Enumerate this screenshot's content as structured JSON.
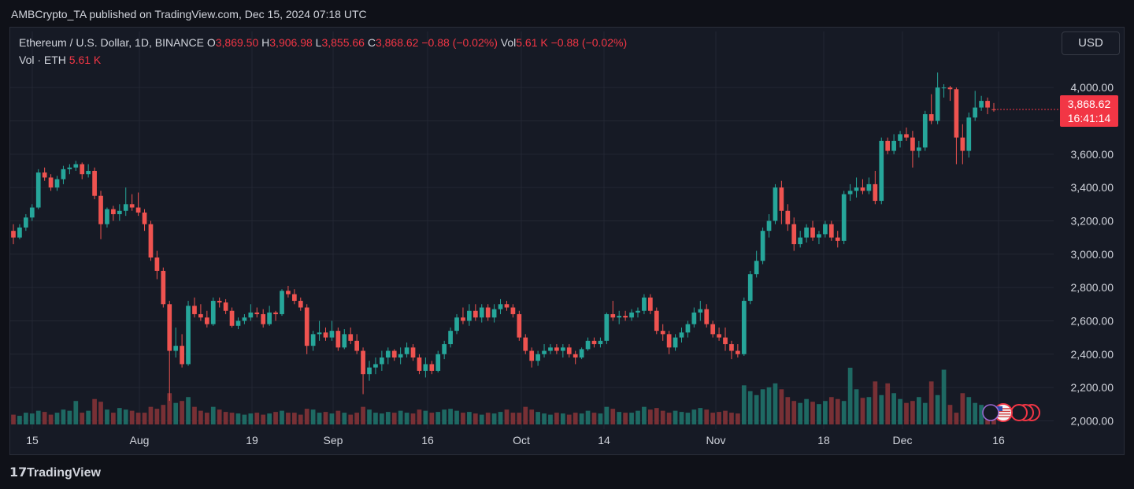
{
  "header": {
    "published": "AMBCrypto_TA published on TradingView.com, Dec 15, 2024 07:18 UTC"
  },
  "legend": {
    "symbol": "Ethereum / U.S. Dollar, 1D, BINANCE",
    "o_label": "O",
    "o_value": "3,869.50",
    "h_label": "H",
    "h_value": "3,906.98",
    "l_label": "L",
    "l_value": "3,855.66",
    "c_label": "C",
    "c_value": "3,868.62",
    "change": "−0.88 (−0.02%)",
    "vol_label": "Vol",
    "vol_value": "5.61 K",
    "vol_change": "−0.88 (−0.02%)",
    "vol_eth_label": "Vol · ETH",
    "vol_eth_value": "5.61 K"
  },
  "currency_button": "USD",
  "price_badge": {
    "price": "3,868.62",
    "countdown": "16:41:14"
  },
  "footer": {
    "brand": "TradingView"
  },
  "colors": {
    "up": "#26a69a",
    "down": "#ef5350",
    "grid": "#232733",
    "badge": "#f23645"
  },
  "chart_data": {
    "type": "candlestick",
    "interval": "1D",
    "x_ticks": [
      "15",
      "Aug",
      "19",
      "Sep",
      "16",
      "Oct",
      "14",
      "Nov",
      "18",
      "Dec",
      "16"
    ],
    "y_ticks": [
      "2,000.00",
      "2,200.00",
      "2,400.00",
      "2,600.00",
      "2,800.00",
      "3,000.00",
      "3,200.00",
      "3,400.00",
      "3,600.00",
      "4,000.00"
    ],
    "ylim": [
      1950,
      4100
    ],
    "candles": [
      {
        "o": 3140,
        "h": 3180,
        "l": 3060,
        "c": 3100
      },
      {
        "o": 3100,
        "h": 3180,
        "l": 3090,
        "c": 3160
      },
      {
        "o": 3160,
        "h": 3240,
        "l": 3140,
        "c": 3220
      },
      {
        "o": 3220,
        "h": 3300,
        "l": 3200,
        "c": 3280
      },
      {
        "o": 3280,
        "h": 3510,
        "l": 3270,
        "c": 3490
      },
      {
        "o": 3490,
        "h": 3520,
        "l": 3440,
        "c": 3460
      },
      {
        "o": 3460,
        "h": 3480,
        "l": 3380,
        "c": 3400
      },
      {
        "o": 3400,
        "h": 3470,
        "l": 3380,
        "c": 3450
      },
      {
        "o": 3450,
        "h": 3530,
        "l": 3420,
        "c": 3510
      },
      {
        "o": 3510,
        "h": 3540,
        "l": 3480,
        "c": 3520
      },
      {
        "o": 3520,
        "h": 3560,
        "l": 3500,
        "c": 3540
      },
      {
        "o": 3540,
        "h": 3550,
        "l": 3450,
        "c": 3480
      },
      {
        "o": 3480,
        "h": 3540,
        "l": 3460,
        "c": 3500
      },
      {
        "o": 3500,
        "h": 3520,
        "l": 3330,
        "c": 3350
      },
      {
        "o": 3350,
        "h": 3380,
        "l": 3090,
        "c": 3180
      },
      {
        "o": 3180,
        "h": 3280,
        "l": 3160,
        "c": 3270
      },
      {
        "o": 3270,
        "h": 3290,
        "l": 3200,
        "c": 3240
      },
      {
        "o": 3240,
        "h": 3300,
        "l": 3200,
        "c": 3260
      },
      {
        "o": 3260,
        "h": 3400,
        "l": 3230,
        "c": 3300
      },
      {
        "o": 3300,
        "h": 3360,
        "l": 3260,
        "c": 3280
      },
      {
        "o": 3280,
        "h": 3370,
        "l": 3230,
        "c": 3250
      },
      {
        "o": 3250,
        "h": 3270,
        "l": 3140,
        "c": 3180
      },
      {
        "o": 3180,
        "h": 3200,
        "l": 2960,
        "c": 2980
      },
      {
        "o": 2980,
        "h": 3020,
        "l": 2850,
        "c": 2900
      },
      {
        "o": 2900,
        "h": 2920,
        "l": 2680,
        "c": 2700
      },
      {
        "o": 2700,
        "h": 2720,
        "l": 2120,
        "c": 2420
      },
      {
        "o": 2420,
        "h": 2560,
        "l": 2380,
        "c": 2450
      },
      {
        "o": 2450,
        "h": 2520,
        "l": 2320,
        "c": 2340
      },
      {
        "o": 2340,
        "h": 2720,
        "l": 2330,
        "c": 2690
      },
      {
        "o": 2690,
        "h": 2740,
        "l": 2620,
        "c": 2640
      },
      {
        "o": 2640,
        "h": 2700,
        "l": 2600,
        "c": 2620
      },
      {
        "o": 2620,
        "h": 2660,
        "l": 2560,
        "c": 2580
      },
      {
        "o": 2580,
        "h": 2740,
        "l": 2570,
        "c": 2720
      },
      {
        "o": 2720,
        "h": 2740,
        "l": 2680,
        "c": 2710
      },
      {
        "o": 2710,
        "h": 2730,
        "l": 2640,
        "c": 2660
      },
      {
        "o": 2660,
        "h": 2680,
        "l": 2560,
        "c": 2570
      },
      {
        "o": 2570,
        "h": 2620,
        "l": 2550,
        "c": 2600
      },
      {
        "o": 2600,
        "h": 2640,
        "l": 2580,
        "c": 2620
      },
      {
        "o": 2620,
        "h": 2700,
        "l": 2600,
        "c": 2650
      },
      {
        "o": 2650,
        "h": 2680,
        "l": 2620,
        "c": 2640
      },
      {
        "o": 2640,
        "h": 2670,
        "l": 2560,
        "c": 2580
      },
      {
        "o": 2580,
        "h": 2690,
        "l": 2570,
        "c": 2650
      },
      {
        "o": 2650,
        "h": 2660,
        "l": 2600,
        "c": 2640
      },
      {
        "o": 2640,
        "h": 2790,
        "l": 2630,
        "c": 2780
      },
      {
        "o": 2780,
        "h": 2810,
        "l": 2740,
        "c": 2760
      },
      {
        "o": 2760,
        "h": 2790,
        "l": 2700,
        "c": 2720
      },
      {
        "o": 2720,
        "h": 2740,
        "l": 2660,
        "c": 2680
      },
      {
        "o": 2680,
        "h": 2700,
        "l": 2400,
        "c": 2450
      },
      {
        "o": 2450,
        "h": 2540,
        "l": 2420,
        "c": 2520
      },
      {
        "o": 2520,
        "h": 2600,
        "l": 2480,
        "c": 2530
      },
      {
        "o": 2530,
        "h": 2560,
        "l": 2480,
        "c": 2500
      },
      {
        "o": 2500,
        "h": 2600,
        "l": 2480,
        "c": 2540
      },
      {
        "o": 2540,
        "h": 2560,
        "l": 2420,
        "c": 2440
      },
      {
        "o": 2440,
        "h": 2550,
        "l": 2430,
        "c": 2520
      },
      {
        "o": 2520,
        "h": 2560,
        "l": 2460,
        "c": 2480
      },
      {
        "o": 2480,
        "h": 2520,
        "l": 2400,
        "c": 2420
      },
      {
        "o": 2420,
        "h": 2440,
        "l": 2160,
        "c": 2280
      },
      {
        "o": 2280,
        "h": 2360,
        "l": 2240,
        "c": 2320
      },
      {
        "o": 2320,
        "h": 2380,
        "l": 2280,
        "c": 2340
      },
      {
        "o": 2340,
        "h": 2420,
        "l": 2300,
        "c": 2380
      },
      {
        "o": 2380,
        "h": 2440,
        "l": 2340,
        "c": 2420
      },
      {
        "o": 2420,
        "h": 2430,
        "l": 2360,
        "c": 2380
      },
      {
        "o": 2380,
        "h": 2440,
        "l": 2340,
        "c": 2400
      },
      {
        "o": 2400,
        "h": 2470,
        "l": 2380,
        "c": 2440
      },
      {
        "o": 2440,
        "h": 2460,
        "l": 2360,
        "c": 2380
      },
      {
        "o": 2380,
        "h": 2400,
        "l": 2280,
        "c": 2300
      },
      {
        "o": 2300,
        "h": 2380,
        "l": 2260,
        "c": 2340
      },
      {
        "o": 2340,
        "h": 2360,
        "l": 2280,
        "c": 2300
      },
      {
        "o": 2300,
        "h": 2420,
        "l": 2290,
        "c": 2400
      },
      {
        "o": 2400,
        "h": 2480,
        "l": 2370,
        "c": 2460
      },
      {
        "o": 2460,
        "h": 2560,
        "l": 2440,
        "c": 2540
      },
      {
        "o": 2540,
        "h": 2640,
        "l": 2520,
        "c": 2620
      },
      {
        "o": 2620,
        "h": 2680,
        "l": 2580,
        "c": 2600
      },
      {
        "o": 2600,
        "h": 2700,
        "l": 2570,
        "c": 2660
      },
      {
        "o": 2660,
        "h": 2700,
        "l": 2600,
        "c": 2620
      },
      {
        "o": 2620,
        "h": 2700,
        "l": 2590,
        "c": 2680
      },
      {
        "o": 2680,
        "h": 2700,
        "l": 2600,
        "c": 2620
      },
      {
        "o": 2620,
        "h": 2700,
        "l": 2590,
        "c": 2670
      },
      {
        "o": 2670,
        "h": 2730,
        "l": 2640,
        "c": 2700
      },
      {
        "o": 2700,
        "h": 2720,
        "l": 2660,
        "c": 2680
      },
      {
        "o": 2680,
        "h": 2700,
        "l": 2620,
        "c": 2640
      },
      {
        "o": 2640,
        "h": 2660,
        "l": 2480,
        "c": 2500
      },
      {
        "o": 2500,
        "h": 2520,
        "l": 2400,
        "c": 2420
      },
      {
        "o": 2420,
        "h": 2440,
        "l": 2320,
        "c": 2360
      },
      {
        "o": 2360,
        "h": 2420,
        "l": 2330,
        "c": 2400
      },
      {
        "o": 2400,
        "h": 2460,
        "l": 2380,
        "c": 2420
      },
      {
        "o": 2420,
        "h": 2460,
        "l": 2400,
        "c": 2440
      },
      {
        "o": 2440,
        "h": 2460,
        "l": 2400,
        "c": 2420
      },
      {
        "o": 2420,
        "h": 2460,
        "l": 2380,
        "c": 2440
      },
      {
        "o": 2440,
        "h": 2460,
        "l": 2380,
        "c": 2400
      },
      {
        "o": 2400,
        "h": 2420,
        "l": 2340,
        "c": 2380
      },
      {
        "o": 2380,
        "h": 2440,
        "l": 2370,
        "c": 2430
      },
      {
        "o": 2430,
        "h": 2500,
        "l": 2420,
        "c": 2480
      },
      {
        "o": 2480,
        "h": 2500,
        "l": 2440,
        "c": 2460
      },
      {
        "o": 2460,
        "h": 2500,
        "l": 2440,
        "c": 2480
      },
      {
        "o": 2480,
        "h": 2650,
        "l": 2460,
        "c": 2640
      },
      {
        "o": 2640,
        "h": 2720,
        "l": 2600,
        "c": 2620
      },
      {
        "o": 2620,
        "h": 2660,
        "l": 2580,
        "c": 2630
      },
      {
        "o": 2630,
        "h": 2660,
        "l": 2600,
        "c": 2620
      },
      {
        "o": 2620,
        "h": 2670,
        "l": 2600,
        "c": 2650
      },
      {
        "o": 2650,
        "h": 2680,
        "l": 2620,
        "c": 2660
      },
      {
        "o": 2660,
        "h": 2760,
        "l": 2640,
        "c": 2740
      },
      {
        "o": 2740,
        "h": 2760,
        "l": 2640,
        "c": 2660
      },
      {
        "o": 2660,
        "h": 2680,
        "l": 2520,
        "c": 2540
      },
      {
        "o": 2540,
        "h": 2580,
        "l": 2480,
        "c": 2520
      },
      {
        "o": 2520,
        "h": 2540,
        "l": 2400,
        "c": 2440
      },
      {
        "o": 2440,
        "h": 2520,
        "l": 2420,
        "c": 2500
      },
      {
        "o": 2500,
        "h": 2560,
        "l": 2470,
        "c": 2530
      },
      {
        "o": 2530,
        "h": 2600,
        "l": 2500,
        "c": 2580
      },
      {
        "o": 2580,
        "h": 2680,
        "l": 2560,
        "c": 2650
      },
      {
        "o": 2650,
        "h": 2720,
        "l": 2600,
        "c": 2670
      },
      {
        "o": 2670,
        "h": 2700,
        "l": 2560,
        "c": 2580
      },
      {
        "o": 2580,
        "h": 2600,
        "l": 2500,
        "c": 2520
      },
      {
        "o": 2520,
        "h": 2560,
        "l": 2480,
        "c": 2500
      },
      {
        "o": 2500,
        "h": 2560,
        "l": 2420,
        "c": 2460
      },
      {
        "o": 2460,
        "h": 2480,
        "l": 2370,
        "c": 2420
      },
      {
        "o": 2420,
        "h": 2460,
        "l": 2380,
        "c": 2400
      },
      {
        "o": 2400,
        "h": 2740,
        "l": 2390,
        "c": 2720
      },
      {
        "o": 2720,
        "h": 2900,
        "l": 2700,
        "c": 2880
      },
      {
        "o": 2880,
        "h": 3020,
        "l": 2860,
        "c": 2960
      },
      {
        "o": 2960,
        "h": 3160,
        "l": 2940,
        "c": 3140
      },
      {
        "o": 3140,
        "h": 3240,
        "l": 3100,
        "c": 3200
      },
      {
        "o": 3200,
        "h": 3420,
        "l": 3180,
        "c": 3400
      },
      {
        "o": 3400,
        "h": 3440,
        "l": 3180,
        "c": 3260
      },
      {
        "o": 3260,
        "h": 3300,
        "l": 3140,
        "c": 3180
      },
      {
        "o": 3180,
        "h": 3220,
        "l": 3020,
        "c": 3060
      },
      {
        "o": 3060,
        "h": 3140,
        "l": 3040,
        "c": 3100
      },
      {
        "o": 3100,
        "h": 3180,
        "l": 3070,
        "c": 3160
      },
      {
        "o": 3160,
        "h": 3200,
        "l": 3080,
        "c": 3100
      },
      {
        "o": 3100,
        "h": 3140,
        "l": 3060,
        "c": 3120
      },
      {
        "o": 3120,
        "h": 3200,
        "l": 3100,
        "c": 3180
      },
      {
        "o": 3180,
        "h": 3200,
        "l": 3080,
        "c": 3100
      },
      {
        "o": 3100,
        "h": 3140,
        "l": 3040,
        "c": 3080
      },
      {
        "o": 3080,
        "h": 3380,
        "l": 3060,
        "c": 3360
      },
      {
        "o": 3360,
        "h": 3420,
        "l": 3320,
        "c": 3380
      },
      {
        "o": 3380,
        "h": 3460,
        "l": 3340,
        "c": 3400
      },
      {
        "o": 3400,
        "h": 3450,
        "l": 3360,
        "c": 3380
      },
      {
        "o": 3380,
        "h": 3460,
        "l": 3360,
        "c": 3420
      },
      {
        "o": 3420,
        "h": 3500,
        "l": 3300,
        "c": 3320
      },
      {
        "o": 3320,
        "h": 3700,
        "l": 3300,
        "c": 3680
      },
      {
        "o": 3680,
        "h": 3700,
        "l": 3600,
        "c": 3620
      },
      {
        "o": 3620,
        "h": 3720,
        "l": 3600,
        "c": 3680
      },
      {
        "o": 3680,
        "h": 3740,
        "l": 3640,
        "c": 3720
      },
      {
        "o": 3720,
        "h": 3760,
        "l": 3680,
        "c": 3700
      },
      {
        "o": 3700,
        "h": 3740,
        "l": 3520,
        "c": 3620
      },
      {
        "o": 3620,
        "h": 3680,
        "l": 3580,
        "c": 3640
      },
      {
        "o": 3640,
        "h": 3860,
        "l": 3620,
        "c": 3840
      },
      {
        "o": 3840,
        "h": 3960,
        "l": 3780,
        "c": 3800
      },
      {
        "o": 3800,
        "h": 4090,
        "l": 3780,
        "c": 4000
      },
      {
        "o": 4000,
        "h": 4020,
        "l": 3940,
        "c": 4000
      },
      {
        "o": 4000,
        "h": 4010,
        "l": 3920,
        "c": 3990
      },
      {
        "o": 3990,
        "h": 4000,
        "l": 3540,
        "c": 3700
      },
      {
        "o": 3700,
        "h": 3780,
        "l": 3540,
        "c": 3620
      },
      {
        "o": 3620,
        "h": 3850,
        "l": 3580,
        "c": 3820
      },
      {
        "o": 3820,
        "h": 3980,
        "l": 3800,
        "c": 3880
      },
      {
        "o": 3880,
        "h": 3950,
        "l": 3860,
        "c": 3920
      },
      {
        "o": 3920,
        "h": 3940,
        "l": 3840,
        "c": 3880
      },
      {
        "o": 3869.5,
        "h": 3906.98,
        "l": 3855.66,
        "c": 3868.62
      }
    ],
    "volume": [
      0.25,
      0.22,
      0.3,
      0.28,
      0.35,
      0.32,
      0.25,
      0.3,
      0.38,
      0.35,
      0.6,
      0.3,
      0.35,
      0.65,
      0.58,
      0.38,
      0.3,
      0.42,
      0.38,
      0.35,
      0.3,
      0.3,
      0.45,
      0.4,
      0.5,
      0.8,
      0.55,
      0.6,
      0.7,
      0.45,
      0.35,
      0.3,
      0.45,
      0.38,
      0.32,
      0.3,
      0.28,
      0.25,
      0.28,
      0.3,
      0.25,
      0.28,
      0.32,
      0.35,
      0.3,
      0.3,
      0.25,
      0.4,
      0.38,
      0.3,
      0.32,
      0.28,
      0.35,
      0.3,
      0.25,
      0.3,
      0.45,
      0.38,
      0.3,
      0.28,
      0.32,
      0.3,
      0.35,
      0.3,
      0.28,
      0.38,
      0.35,
      0.3,
      0.32,
      0.38,
      0.4,
      0.35,
      0.3,
      0.32,
      0.28,
      0.25,
      0.3,
      0.28,
      0.32,
      0.38,
      0.3,
      0.3,
      0.45,
      0.38,
      0.32,
      0.28,
      0.25,
      0.3,
      0.28,
      0.25,
      0.3,
      0.28,
      0.35,
      0.3,
      0.28,
      0.45,
      0.4,
      0.32,
      0.3,
      0.3,
      0.35,
      0.45,
      0.38,
      0.42,
      0.35,
      0.3,
      0.35,
      0.32,
      0.3,
      0.38,
      0.42,
      0.38,
      0.3,
      0.32,
      0.35,
      0.3,
      0.28,
      1.0,
      0.85,
      0.75,
      0.9,
      0.95,
      1.05,
      0.9,
      0.7,
      0.6,
      0.55,
      0.65,
      0.58,
      0.52,
      0.6,
      0.7,
      0.65,
      0.6,
      1.45,
      0.9,
      0.68,
      0.7,
      1.1,
      0.75,
      1.05,
      0.8,
      0.65,
      0.55,
      0.6,
      0.7,
      0.55,
      1.1,
      0.75,
      1.4,
      0.5,
      0.3,
      0.8,
      0.7,
      0.55,
      0.5,
      0.42,
      0.35
    ]
  }
}
